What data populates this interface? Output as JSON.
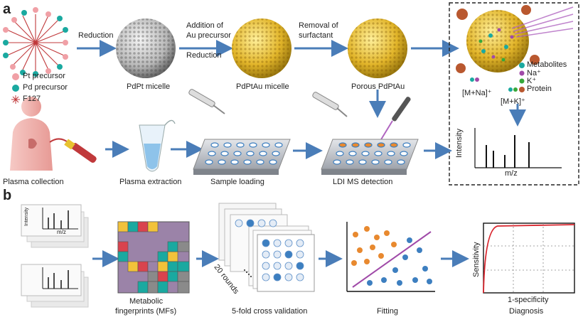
{
  "panel_a": {
    "label": "a",
    "steps": {
      "reduction_1": "Reduction",
      "addition_line1": "Addition of",
      "addition_line2": "Au precursor",
      "reduction_2": "Reduction",
      "removal_line1": "Removal of",
      "removal_line2": "surfactant"
    },
    "legend_left": [
      "Pt precursor",
      "Pd precursor",
      "F127"
    ],
    "particles": [
      "PdPt micelle",
      "PdPtAu micelle",
      "Porous PdPtAu"
    ],
    "workflow": [
      "Plasma collection",
      "Plasma extraction",
      "Sample loading",
      "LDI MS detection"
    ],
    "inset": {
      "legend": [
        "Metabolites",
        "Na⁺",
        "K⁺",
        "Protein"
      ],
      "ions": [
        "[M+Na]⁺",
        "[M+K]⁺"
      ],
      "ylabel": "Intensity",
      "xlabel": "m/z"
    }
  },
  "panel_b": {
    "label": "b",
    "spectrum_ylabel": "Intensity",
    "spectrum_xlabel": "m/z",
    "steps": [
      "Metabolic",
      "fingerprints (MFs)",
      "5-fold cross validation",
      "Fitting",
      "Diagnosis"
    ],
    "rounds": "20 rounds",
    "roc_ylabel": "Sensitivity",
    "roc_xlabel": "1-specificity"
  },
  "colors": {
    "arrow": "#4a7db8",
    "pt": "#f0a0a6",
    "pd": "#1aa9a0",
    "gold": "#e2b52a",
    "orange": "#e8892f",
    "blue": "#3d7fc0",
    "purple": "#a04aa8"
  }
}
